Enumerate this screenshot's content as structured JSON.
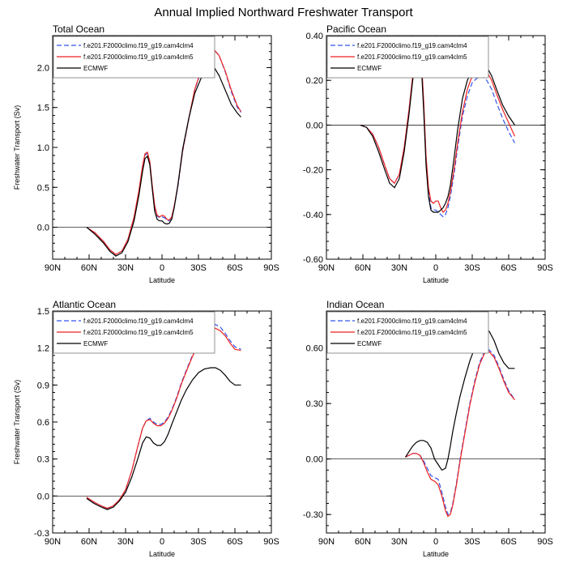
{
  "page_title": "Annual Implied Northward Freshwater Transport",
  "chart_data": [
    {
      "type": "line",
      "title": "Total Ocean",
      "xlabel": "Latitude",
      "ylabel": "Freshwater Transport (Sv)",
      "xlim": [
        -90,
        90
      ],
      "ylim": [
        -0.4,
        2.4
      ],
      "x_ticks": [
        -90,
        -60,
        -30,
        0,
        30,
        60,
        90
      ],
      "x_tick_labels": [
        "90N",
        "60N",
        "30N",
        "0",
        "30S",
        "60S",
        "90S"
      ],
      "y_ticks": [
        0,
        0.5,
        1,
        1.5,
        2
      ],
      "y_tick_labels": [
        "0.0",
        "0.5",
        "1.0",
        "1.5",
        "2.0"
      ],
      "zero_line": 0,
      "legend": [
        "f.e201.F2000climo.f19_g19.cam4clm4",
        "f.e201.F2000climo.f19_g19.cam4clm5",
        "ECMWF"
      ],
      "series": [
        {
          "name": "f.e201.F2000climo.f19_g19.cam4clm4",
          "color": "#3355ee",
          "dash": true,
          "x": [
            -62,
            -55,
            -48,
            -43,
            -38,
            -33,
            -28,
            -23,
            -19,
            -16,
            -14,
            -12,
            -10,
            -8,
            -6,
            -4,
            -2,
            0,
            2,
            4,
            6,
            8,
            10,
            13,
            17,
            22,
            27,
            32,
            36,
            40,
            43,
            47,
            52,
            57,
            62,
            65
          ],
          "y": [
            0,
            -0.07,
            -0.18,
            -0.28,
            -0.34,
            -0.3,
            -0.15,
            0.12,
            0.45,
            0.75,
            0.9,
            0.93,
            0.8,
            0.5,
            0.25,
            0.14,
            0.12,
            0.13,
            0.12,
            0.09,
            0.08,
            0.12,
            0.25,
            0.5,
            0.95,
            1.35,
            1.72,
            1.95,
            2.1,
            2.2,
            2.22,
            2.15,
            1.95,
            1.7,
            1.5,
            1.44
          ]
        },
        {
          "name": "f.e201.F2000climo.f19_g19.cam4clm5",
          "color": "#ee2222",
          "dash": false,
          "x": [
            -62,
            -55,
            -48,
            -43,
            -38,
            -33,
            -28,
            -23,
            -19,
            -16,
            -14,
            -12,
            -10,
            -8,
            -6,
            -4,
            -2,
            0,
            2,
            4,
            6,
            8,
            10,
            13,
            17,
            22,
            27,
            32,
            36,
            40,
            43,
            47,
            52,
            57,
            62,
            65
          ],
          "y": [
            0,
            -0.07,
            -0.18,
            -0.28,
            -0.34,
            -0.3,
            -0.15,
            0.13,
            0.46,
            0.77,
            0.92,
            0.94,
            0.82,
            0.52,
            0.27,
            0.15,
            0.13,
            0.15,
            0.14,
            0.1,
            0.09,
            0.13,
            0.26,
            0.52,
            0.96,
            1.36,
            1.73,
            1.96,
            2.12,
            2.2,
            2.22,
            2.15,
            1.96,
            1.72,
            1.52,
            1.45
          ]
        },
        {
          "name": "ECMWF",
          "color": "#000000",
          "dash": false,
          "x": [
            -62,
            -55,
            -48,
            -43,
            -38,
            -33,
            -28,
            -23,
            -19,
            -16,
            -14,
            -12,
            -10,
            -8,
            -6,
            -4,
            -2,
            0,
            2,
            4,
            6,
            8,
            10,
            13,
            17,
            22,
            27,
            32,
            36,
            40,
            43,
            47,
            52,
            57,
            62,
            65
          ],
          "y": [
            0,
            -0.09,
            -0.2,
            -0.3,
            -0.36,
            -0.32,
            -0.18,
            0.08,
            0.4,
            0.7,
            0.86,
            0.89,
            0.78,
            0.48,
            0.2,
            0.1,
            0.08,
            0.08,
            0.05,
            0.04,
            0.05,
            0.1,
            0.24,
            0.52,
            0.98,
            1.36,
            1.68,
            1.86,
            1.96,
            2.0,
            2.0,
            1.9,
            1.72,
            1.54,
            1.43,
            1.38
          ]
        }
      ]
    },
    {
      "type": "line",
      "title": "Pacific Ocean",
      "xlabel": "Latitude",
      "ylabel": "",
      "xlim": [
        -90,
        90
      ],
      "ylim": [
        -0.6,
        0.4
      ],
      "x_ticks": [
        -90,
        -60,
        -30,
        0,
        30,
        60,
        90
      ],
      "x_tick_labels": [
        "90N",
        "60N",
        "30N",
        "0",
        "30S",
        "60S",
        "90S"
      ],
      "y_ticks": [
        -0.6,
        -0.4,
        -0.2,
        0,
        0.2,
        0.4
      ],
      "y_tick_labels": [
        "-0.60",
        "-0.40",
        "-0.20",
        "0.00",
        "0.20",
        "0.40"
      ],
      "zero_line": 0,
      "legend": [
        "f.e201.F2000climo.f19_g19.cam4clm4",
        "f.e201.F2000climo.f19_g19.cam4clm5",
        "ECMWF"
      ],
      "series": [
        {
          "name": "f.e201.F2000climo.f19_g19.cam4clm4",
          "color": "#3355ee",
          "dash": true,
          "x": [
            -62,
            -57,
            -52,
            -47,
            -42,
            -38,
            -34,
            -30,
            -26,
            -22,
            -19,
            -16,
            -14,
            -12,
            -10,
            -8,
            -6,
            -4,
            -2,
            0,
            2,
            4,
            6,
            8,
            10,
            12,
            15,
            18,
            22,
            26,
            30,
            34,
            38,
            42,
            46,
            50,
            55,
            60,
            65
          ],
          "y": [
            0,
            -0.01,
            -0.04,
            -0.1,
            -0.18,
            -0.24,
            -0.26,
            -0.22,
            -0.1,
            0.07,
            0.22,
            0.33,
            0.36,
            0.3,
            0.1,
            -0.15,
            -0.3,
            -0.37,
            -0.38,
            -0.38,
            -0.39,
            -0.4,
            -0.41,
            -0.4,
            -0.37,
            -0.32,
            -0.22,
            -0.1,
            0.04,
            0.13,
            0.19,
            0.21,
            0.22,
            0.2,
            0.16,
            0.1,
            0.03,
            -0.03,
            -0.08
          ]
        },
        {
          "name": "f.e201.F2000climo.f19_g19.cam4clm5",
          "color": "#ee2222",
          "dash": false,
          "x": [
            -62,
            -57,
            -52,
            -47,
            -42,
            -38,
            -34,
            -30,
            -26,
            -22,
            -19,
            -16,
            -14,
            -12,
            -10,
            -8,
            -6,
            -4,
            -2,
            0,
            2,
            4,
            6,
            8,
            10,
            12,
            15,
            18,
            22,
            26,
            30,
            34,
            38,
            42,
            46,
            50,
            55,
            60,
            65
          ],
          "y": [
            0,
            -0.01,
            -0.04,
            -0.1,
            -0.18,
            -0.24,
            -0.26,
            -0.22,
            -0.1,
            0.07,
            0.22,
            0.33,
            0.37,
            0.31,
            0.11,
            -0.14,
            -0.28,
            -0.34,
            -0.35,
            -0.34,
            -0.34,
            -0.37,
            -0.39,
            -0.38,
            -0.35,
            -0.3,
            -0.2,
            -0.08,
            0.06,
            0.16,
            0.22,
            0.25,
            0.25,
            0.24,
            0.2,
            0.14,
            0.07,
            0.01,
            -0.05
          ]
        },
        {
          "name": "ECMWF",
          "color": "#000000",
          "dash": false,
          "x": [
            -62,
            -57,
            -52,
            -47,
            -42,
            -38,
            -34,
            -30,
            -26,
            -22,
            -19,
            -16,
            -14,
            -12,
            -10,
            -8,
            -6,
            -4,
            -2,
            0,
            2,
            4,
            6,
            8,
            10,
            12,
            15,
            18,
            22,
            26,
            30,
            34,
            38,
            42,
            46,
            50,
            55,
            60,
            65
          ],
          "y": [
            0,
            -0.01,
            -0.05,
            -0.12,
            -0.2,
            -0.26,
            -0.28,
            -0.24,
            -0.12,
            0.05,
            0.2,
            0.32,
            0.35,
            0.28,
            0.07,
            -0.18,
            -0.32,
            -0.38,
            -0.39,
            -0.39,
            -0.39,
            -0.38,
            -0.37,
            -0.35,
            -0.32,
            -0.27,
            -0.15,
            -0.02,
            0.12,
            0.2,
            0.25,
            0.27,
            0.27,
            0.26,
            0.22,
            0.16,
            0.09,
            0.04,
            0
          ]
        }
      ]
    },
    {
      "type": "line",
      "title": "Atlantic Ocean",
      "xlabel": "Latitude",
      "ylabel": "Freshwater Transport (Sv)",
      "xlim": [
        -90,
        90
      ],
      "ylim": [
        -0.3,
        1.5
      ],
      "x_ticks": [
        -90,
        -60,
        -30,
        0,
        30,
        60,
        90
      ],
      "x_tick_labels": [
        "90N",
        "60N",
        "30N",
        "0",
        "30S",
        "60S",
        "90S"
      ],
      "y_ticks": [
        -0.3,
        0,
        0.3,
        0.6,
        0.9,
        1.2,
        1.5
      ],
      "y_tick_labels": [
        "-0.3",
        "0.0",
        "0.3",
        "0.6",
        "0.9",
        "1.2",
        "1.5"
      ],
      "zero_line": 0,
      "legend": [
        "f.e201.F2000climo.f19_g19.cam4clm4",
        "f.e201.F2000climo.f19_g19.cam4clm5",
        "ECMWF"
      ],
      "series": [
        {
          "name": "f.e201.F2000climo.f19_g19.cam4clm4",
          "color": "#3355ee",
          "dash": true,
          "x": [
            -62,
            -56,
            -50,
            -45,
            -40,
            -35,
            -30,
            -25,
            -20,
            -16,
            -13,
            -10,
            -7,
            -4,
            -1,
            2,
            5,
            8,
            12,
            16,
            20,
            25,
            30,
            35,
            40,
            44,
            48,
            52,
            56,
            60,
            65
          ],
          "y": [
            -0.01,
            -0.05,
            -0.08,
            -0.1,
            -0.08,
            -0.03,
            0.05,
            0.2,
            0.4,
            0.55,
            0.61,
            0.63,
            0.6,
            0.58,
            0.58,
            0.6,
            0.64,
            0.7,
            0.8,
            0.92,
            1.02,
            1.14,
            1.25,
            1.33,
            1.38,
            1.39,
            1.37,
            1.32,
            1.26,
            1.21,
            1.19
          ]
        },
        {
          "name": "f.e201.F2000climo.f19_g19.cam4clm5",
          "color": "#ee2222",
          "dash": false,
          "x": [
            -62,
            -56,
            -50,
            -45,
            -40,
            -35,
            -30,
            -25,
            -20,
            -16,
            -13,
            -10,
            -7,
            -4,
            -1,
            2,
            5,
            8,
            12,
            16,
            20,
            25,
            30,
            35,
            40,
            44,
            48,
            52,
            56,
            60,
            65
          ],
          "y": [
            -0.01,
            -0.05,
            -0.08,
            -0.1,
            -0.08,
            -0.03,
            0.05,
            0.2,
            0.4,
            0.55,
            0.61,
            0.62,
            0.59,
            0.57,
            0.57,
            0.59,
            0.63,
            0.69,
            0.79,
            0.91,
            1.01,
            1.13,
            1.23,
            1.3,
            1.35,
            1.36,
            1.34,
            1.3,
            1.24,
            1.19,
            1.18
          ]
        },
        {
          "name": "ECMWF",
          "color": "#000000",
          "dash": false,
          "x": [
            -62,
            -56,
            -50,
            -45,
            -40,
            -35,
            -30,
            -25,
            -20,
            -16,
            -13,
            -10,
            -7,
            -4,
            -1,
            2,
            5,
            8,
            12,
            16,
            20,
            25,
            30,
            35,
            40,
            44,
            48,
            52,
            56,
            60,
            65
          ],
          "y": [
            -0.02,
            -0.06,
            -0.09,
            -0.11,
            -0.09,
            -0.04,
            0.03,
            0.15,
            0.3,
            0.43,
            0.48,
            0.47,
            0.43,
            0.41,
            0.41,
            0.44,
            0.5,
            0.58,
            0.68,
            0.78,
            0.86,
            0.94,
            1.0,
            1.03,
            1.04,
            1.04,
            1.02,
            0.98,
            0.93,
            0.9,
            0.9
          ]
        }
      ]
    },
    {
      "type": "line",
      "title": "Indian Ocean",
      "xlabel": "Latitude",
      "ylabel": "",
      "xlim": [
        -90,
        90
      ],
      "ylim": [
        -0.4,
        0.8
      ],
      "x_ticks": [
        -90,
        -60,
        -30,
        0,
        30,
        60,
        90
      ],
      "x_tick_labels": [
        "90N",
        "60N",
        "30N",
        "0",
        "30S",
        "60S",
        "90S"
      ],
      "y_ticks": [
        -0.3,
        0,
        0.3,
        0.6
      ],
      "y_tick_labels": [
        "-0.30",
        "0.00",
        "0.30",
        "0.60"
      ],
      "zero_line": 0,
      "legend": [
        "f.e201.F2000climo.f19_g19.cam4clm4",
        "f.e201.F2000climo.f19_g19.cam4clm5",
        "ECMWF"
      ],
      "series": [
        {
          "name": "f.e201.F2000climo.f19_g19.cam4clm4",
          "color": "#3355ee",
          "dash": true,
          "x": [
            -25,
            -22,
            -19,
            -16,
            -13,
            -10,
            -7,
            -4,
            -1,
            2,
            5,
            8,
            10,
            12,
            14,
            17,
            20,
            24,
            28,
            32,
            36,
            40,
            44,
            48,
            52,
            56,
            60,
            65
          ],
          "y": [
            0.01,
            0.02,
            0.03,
            0.03,
            0.02,
            -0.01,
            -0.05,
            -0.09,
            -0.1,
            -0.11,
            -0.18,
            -0.26,
            -0.3,
            -0.29,
            -0.24,
            -0.13,
            0,
            0.15,
            0.3,
            0.42,
            0.52,
            0.58,
            0.59,
            0.56,
            0.5,
            0.43,
            0.37,
            0.32
          ]
        },
        {
          "name": "f.e201.F2000climo.f19_g19.cam4clm5",
          "color": "#ee2222",
          "dash": false,
          "x": [
            -25,
            -22,
            -19,
            -16,
            -13,
            -10,
            -7,
            -4,
            -1,
            2,
            5,
            8,
            10,
            12,
            14,
            17,
            20,
            24,
            28,
            32,
            36,
            40,
            44,
            48,
            52,
            56,
            60,
            65
          ],
          "y": [
            0.01,
            0.02,
            0.03,
            0.03,
            0.02,
            -0.02,
            -0.07,
            -0.11,
            -0.12,
            -0.14,
            -0.2,
            -0.28,
            -0.31,
            -0.3,
            -0.25,
            -0.14,
            -0.01,
            0.14,
            0.29,
            0.41,
            0.51,
            0.57,
            0.58,
            0.55,
            0.49,
            0.42,
            0.36,
            0.32
          ]
        },
        {
          "name": "ECMWF",
          "color": "#000000",
          "dash": false,
          "x": [
            -25,
            -22,
            -19,
            -16,
            -13,
            -10,
            -7,
            -4,
            -1,
            2,
            5,
            8,
            10,
            12,
            14,
            17,
            20,
            24,
            28,
            32,
            36,
            40,
            44,
            48,
            52,
            56,
            60,
            65
          ],
          "y": [
            0.01,
            0.04,
            0.07,
            0.09,
            0.1,
            0.1,
            0.09,
            0.06,
            0,
            -0.03,
            -0.06,
            -0.05,
            0,
            0.07,
            0.15,
            0.25,
            0.34,
            0.44,
            0.53,
            0.6,
            0.66,
            0.7,
            0.69,
            0.64,
            0.57,
            0.52,
            0.49,
            0.49
          ]
        }
      ]
    }
  ]
}
